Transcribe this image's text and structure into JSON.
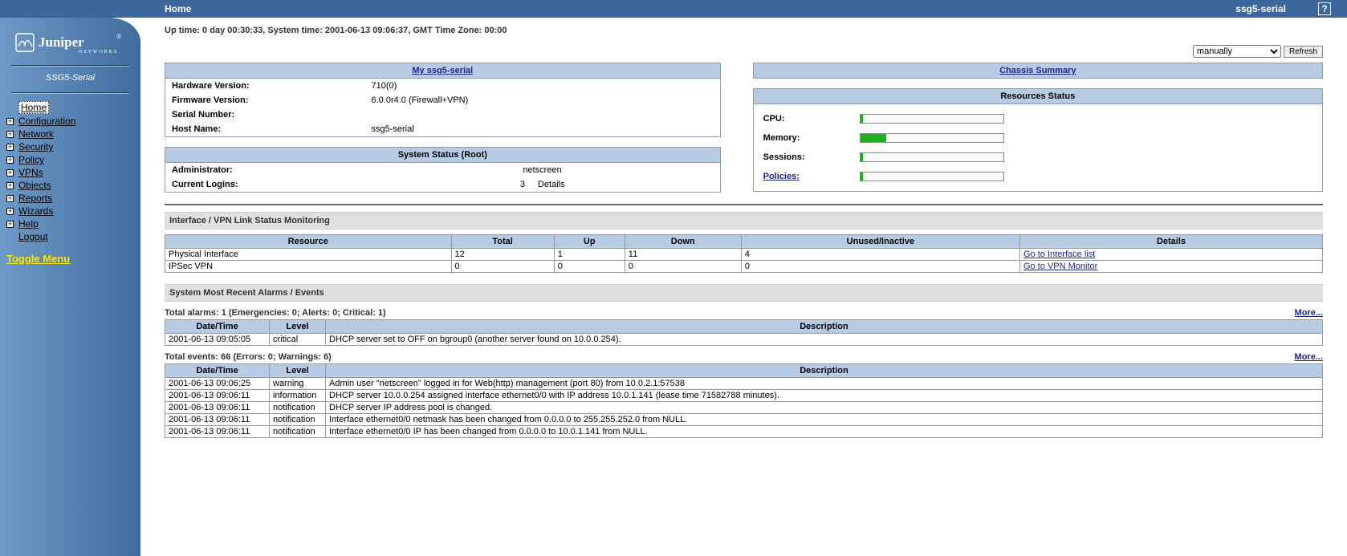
{
  "colors": {
    "topbar": "#3c679a",
    "panel_header": "#b8cbe4",
    "link": "#1a2a8a",
    "bar_fill": "#1DAF1D"
  },
  "topbar": {
    "crumb": "Home",
    "device": "ssg5-serial",
    "help": "?"
  },
  "sidebar": {
    "brand_top": "Juniper",
    "brand_sub": "NETWORKS",
    "device": "SSG5-Serial",
    "items": [
      {
        "label": "Home",
        "exp": false,
        "sel": true
      },
      {
        "label": "Configuration",
        "exp": true
      },
      {
        "label": "Network",
        "exp": true
      },
      {
        "label": "Security",
        "exp": true
      },
      {
        "label": "Policy",
        "exp": true
      },
      {
        "label": "VPNs",
        "exp": true
      },
      {
        "label": "Objects",
        "exp": true
      },
      {
        "label": "Reports",
        "exp": true
      },
      {
        "label": "Wizards",
        "exp": true
      },
      {
        "label": "Help",
        "exp": true
      },
      {
        "label": "Logout",
        "exp": false
      }
    ],
    "toggle": "Toggle Menu"
  },
  "status_line": "Up time: 0 day 00:30:33,    System time: 2001-06-13 09:06:37,   GMT Time Zone: 00:00",
  "refresh": {
    "select": "manually",
    "button": "Refresh"
  },
  "device_panel": {
    "title": "My ssg5-serial",
    "rows": [
      {
        "k": "Hardware Version:",
        "v": "710(0)"
      },
      {
        "k": "Firmware Version:",
        "v": "6.0.0r4.0 (Firewall+VPN)"
      },
      {
        "k": "Serial Number:",
        "v": ""
      },
      {
        "k": "Host Name:",
        "v": "ssg5-serial"
      }
    ]
  },
  "sys_status": {
    "title": "System Status  (Root)",
    "admin_k": "Administrator:",
    "admin_v": "netscreen",
    "logins_k": "Current Logins:",
    "logins_n": "3",
    "details": "Details"
  },
  "chassis": {
    "title": "Chassis Summary"
  },
  "resources": {
    "title": "Resources Status",
    "rows": [
      {
        "label": "CPU:",
        "pct": 2,
        "link": false
      },
      {
        "label": "Memory:",
        "pct": 18,
        "link": false
      },
      {
        "label": "Sessions:",
        "pct": 2,
        "link": false
      },
      {
        "label": "Policies:",
        "pct": 2,
        "link": true
      }
    ]
  },
  "ifmon": {
    "title": "Interface / VPN Link Status Monitoring",
    "headers": [
      "Resource",
      "Total",
      "Up",
      "Down",
      "Unused/Inactive",
      "Details"
    ],
    "rows": [
      {
        "c": [
          "Physical Interface",
          "12",
          "1",
          "11",
          "4"
        ],
        "link": "Go to Interface list"
      },
      {
        "c": [
          "IPSec VPN",
          "0",
          "0",
          "0",
          "0"
        ],
        "link": "Go to VPN Monitor"
      }
    ]
  },
  "alarms_hdr": "System Most Recent Alarms   /   Events",
  "alarms": {
    "summary": "Total alarms: 1   (Emergencies: 0; Alerts: 0; Critical: 1)",
    "more": "More...",
    "headers": [
      "Date/Time",
      "Level",
      "Description"
    ],
    "rows": [
      {
        "dt": "2001-06-13 09:05:05",
        "lvl": "critical",
        "desc": "DHCP server set to OFF on bgroup0 (another server found on 10.0.0.254)."
      }
    ]
  },
  "events": {
    "summary": "Total events: 66   (Errors: 0; Warnings: 6)",
    "more": "More...",
    "headers": [
      "Date/Time",
      "Level",
      "Description"
    ],
    "rows": [
      {
        "dt": "2001-06-13 09:06:25",
        "lvl": "warning",
        "desc": "Admin user \"netscreen\" logged in for Web(http) management (port 80) from 10.0.2.1:57538"
      },
      {
        "dt": "2001-06-13 09:06:11",
        "lvl": "information",
        "desc": "DHCP server 10.0.0.254 assigned interface ethernet0/0 with IP address 10.0.1.141 (lease time 71582788 minutes)."
      },
      {
        "dt": "2001-06-13 09:06:11",
        "lvl": "notification",
        "desc": "DHCP server IP address pool is changed."
      },
      {
        "dt": "2001-06-13 09:06:11",
        "lvl": "notification",
        "desc": "Interface ethernet0/0 netmask has been changed from 0.0.0.0 to 255.255.252.0 from NULL."
      },
      {
        "dt": "2001-06-13 09:06:11",
        "lvl": "notification",
        "desc": "Interface ethernet0/0 IP has been changed from 0.0.0.0 to 10.0.1.141 from NULL."
      }
    ]
  }
}
